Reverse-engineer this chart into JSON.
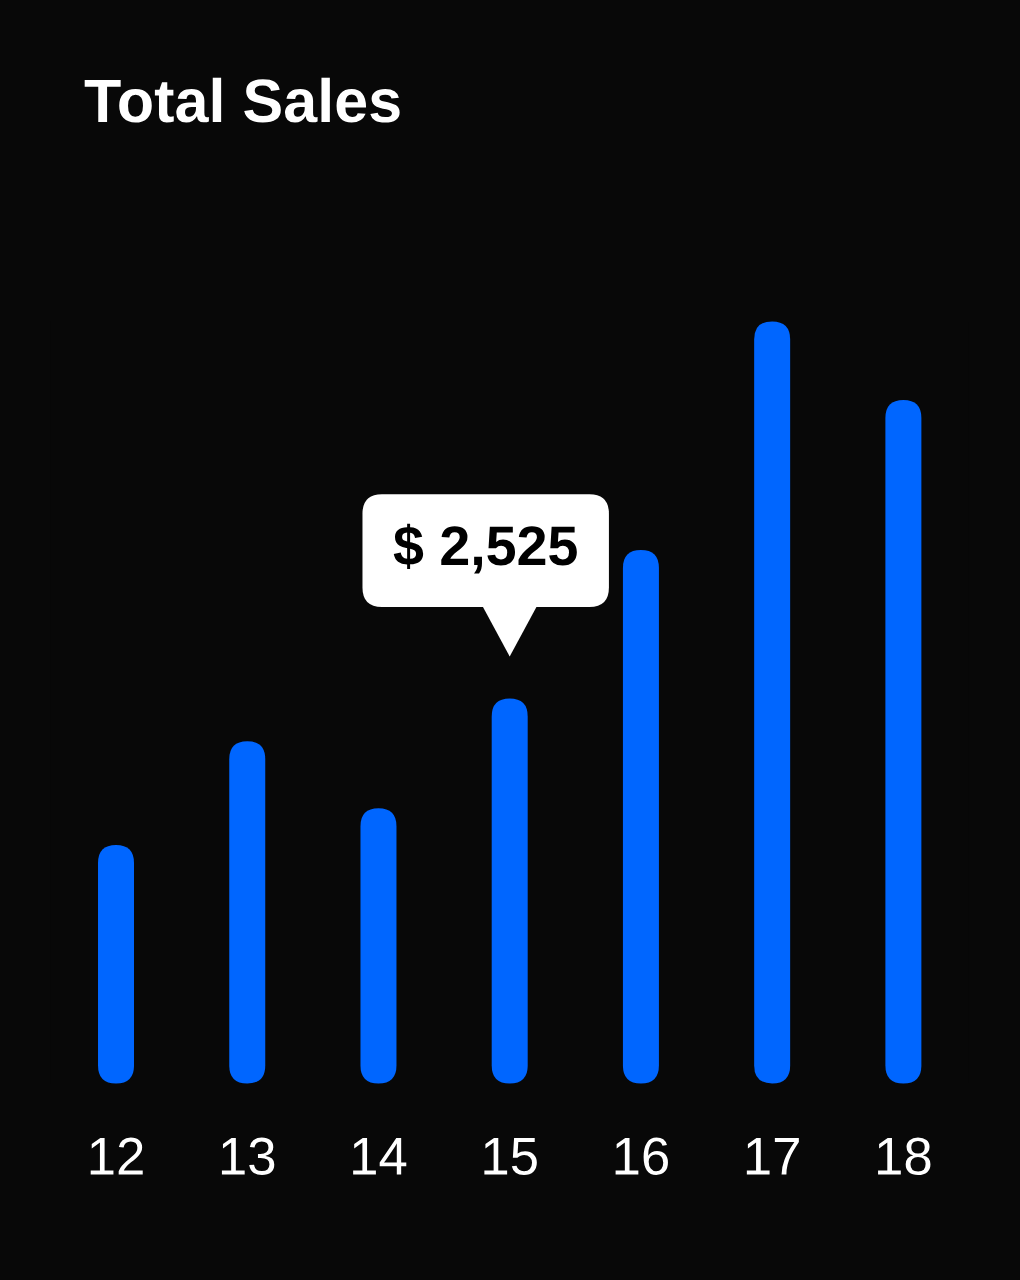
{
  "chart_data": {
    "type": "bar",
    "title": "Total Sales",
    "categories": [
      "12",
      "13",
      "14",
      "15",
      "16",
      "17",
      "18"
    ],
    "values": [
      1565,
      2245,
      1805,
      2525,
      3500,
      5000,
      4485
    ],
    "value_labels": [
      null,
      null,
      null,
      "$ 2,525",
      null,
      null,
      null
    ],
    "color": "#0066ff"
  }
}
